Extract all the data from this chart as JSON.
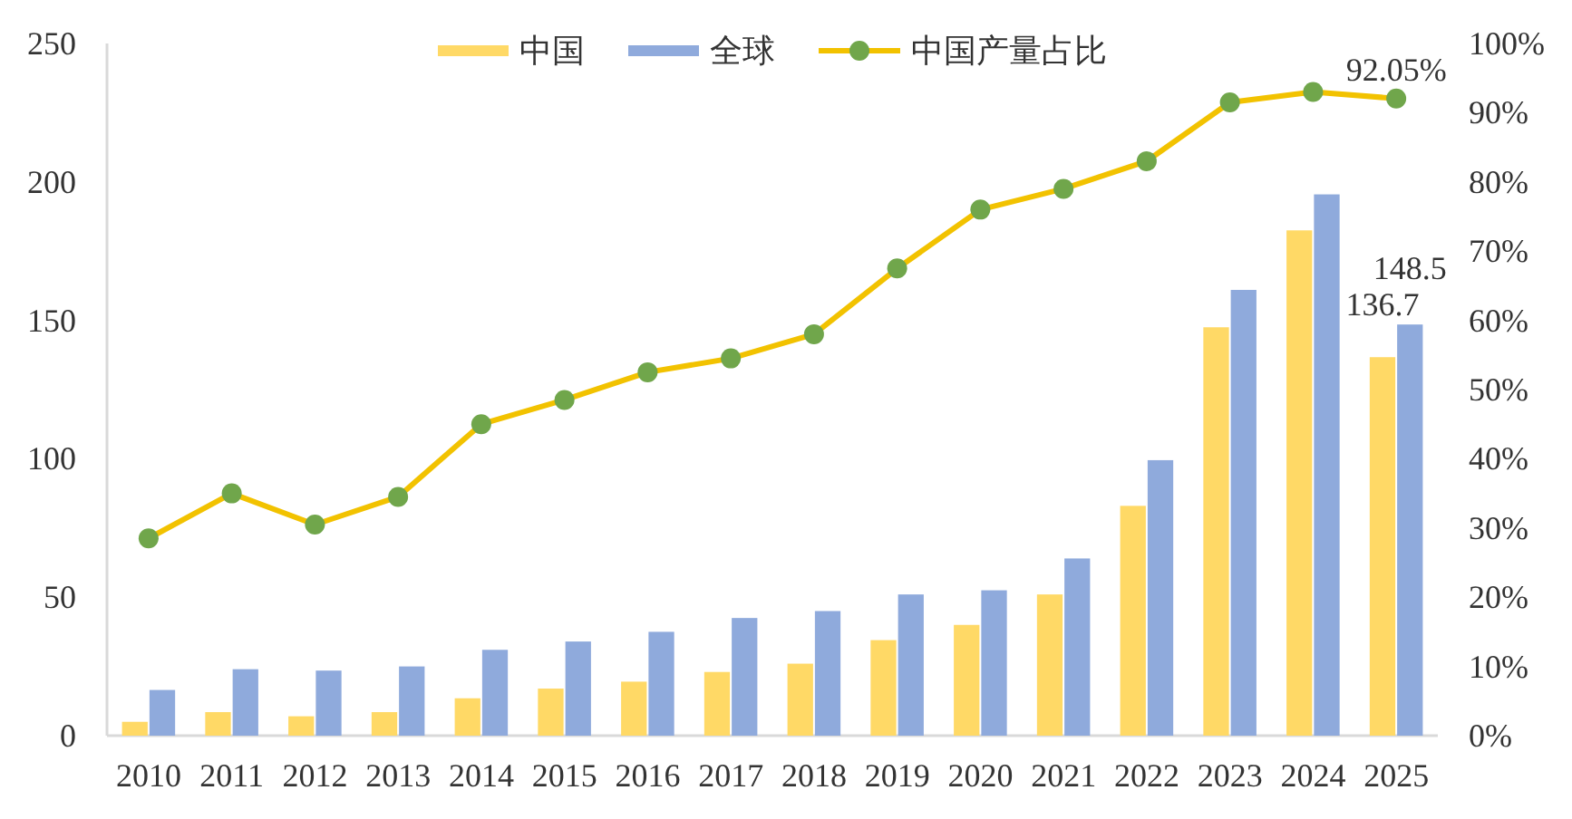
{
  "chart_data": {
    "type": "bar",
    "categories": [
      "2010",
      "2011",
      "2012",
      "2013",
      "2014",
      "2015",
      "2016",
      "2017",
      "2018",
      "2019",
      "2020",
      "2021",
      "2022",
      "2023",
      "2024",
      "2025"
    ],
    "series": [
      {
        "name": "中国",
        "color": "#ffd966",
        "values": [
          5,
          8.5,
          7,
          8.5,
          13.5,
          17,
          19.5,
          23,
          26,
          34.5,
          40,
          51,
          83,
          147.5,
          182.5,
          136.7
        ],
        "value_labels": [
          null,
          null,
          null,
          null,
          null,
          null,
          null,
          null,
          null,
          null,
          null,
          null,
          null,
          null,
          null,
          "136.7"
        ]
      },
      {
        "name": "全球",
        "color": "#8faadc",
        "values": [
          16.5,
          24,
          23.5,
          25,
          31,
          34,
          37.5,
          42.5,
          45,
          51,
          52.5,
          64,
          99.5,
          161,
          195.5,
          148.5
        ],
        "value_labels": [
          null,
          null,
          null,
          null,
          null,
          null,
          null,
          null,
          null,
          null,
          null,
          null,
          null,
          null,
          null,
          "148.5"
        ]
      },
      {
        "name": "中国产量占比",
        "type": "line",
        "axis": "y2",
        "color": "#f2c200",
        "marker": "circle",
        "colors": [
          "#70a64b",
          "#70a64b",
          "#70a64b",
          "#70a64b",
          "#70a64b",
          "#70a64b",
          "#70a64b",
          "#70a64b",
          "#70a64b",
          "#70a64b",
          "#70a64b",
          "#70a64b",
          "#70a64b",
          "#70a64b",
          "#70a64b",
          "#70a64b"
        ],
        "values": [
          28.5,
          35,
          30.5,
          34.5,
          45,
          48.5,
          52.5,
          54.5,
          58,
          67.5,
          76,
          79,
          83,
          91.5,
          93,
          92.05
        ],
        "value_labels": [
          null,
          null,
          null,
          null,
          null,
          null,
          null,
          null,
          null,
          null,
          null,
          null,
          null,
          null,
          null,
          "92.05%"
        ]
      }
    ],
    "ylim": [
      0,
      250
    ],
    "yticks": [
      0,
      50,
      100,
      150,
      200,
      250
    ],
    "y2lim": [
      0,
      100
    ],
    "y2ticks": [
      {
        "value": 0,
        "label": "0%"
      },
      {
        "value": 10,
        "label": "10%"
      },
      {
        "value": 20,
        "label": "20%"
      },
      {
        "value": 30,
        "label": "30%"
      },
      {
        "value": 40,
        "label": "40%"
      },
      {
        "value": 50,
        "label": "50%"
      },
      {
        "value": 60,
        "label": "60%"
      },
      {
        "value": 70,
        "label": "70%"
      },
      {
        "value": 80,
        "label": "80%"
      },
      {
        "value": 90,
        "label": "90%"
      },
      {
        "value": 100,
        "label": "100%"
      }
    ],
    "legend": "top"
  }
}
